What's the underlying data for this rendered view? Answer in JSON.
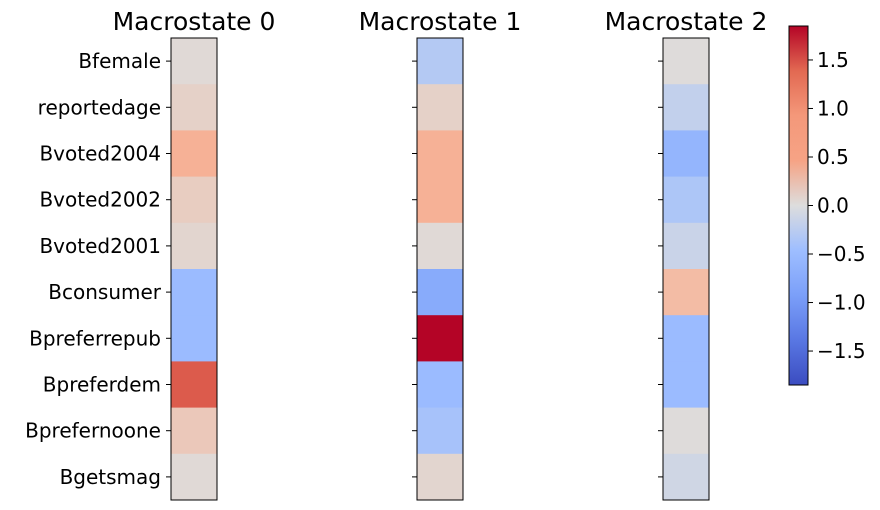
{
  "chart_data": {
    "type": "heatmap",
    "colormap": "coolwarm",
    "vmin": -1.85,
    "vmax": 1.85,
    "rows": [
      "Bfemale",
      "reportedage",
      "Bvoted2004",
      "Bvoted2002",
      "Bvoted2001",
      "Bconsumer",
      "Bpreferrepub",
      "Bpreferdem",
      "Bprefernoone",
      "Bgetsmag"
    ],
    "panels": [
      {
        "title": "Macrostate 0",
        "values": [
          0.05,
          0.15,
          0.55,
          0.2,
          0.1,
          -0.5,
          -0.5,
          1.45,
          0.25,
          0.05
        ]
      },
      {
        "title": "Macrostate 1",
        "values": [
          -0.3,
          0.15,
          0.55,
          0.55,
          0.05,
          -0.75,
          1.85,
          -0.5,
          -0.4,
          0.1
        ]
      },
      {
        "title": "Macrostate 2",
        "values": [
          0.02,
          -0.2,
          -0.6,
          -0.35,
          -0.15,
          0.4,
          -0.5,
          -0.5,
          0.02,
          -0.1
        ]
      }
    ],
    "colorbar": {
      "ticks": [
        1.5,
        1.0,
        0.5,
        0.0,
        -0.5,
        -1.0,
        -1.5
      ],
      "tick_labels": [
        "1.5",
        "1.0",
        "0.5",
        "0.0",
        "−0.5",
        "−1.0",
        "−1.5"
      ]
    }
  }
}
